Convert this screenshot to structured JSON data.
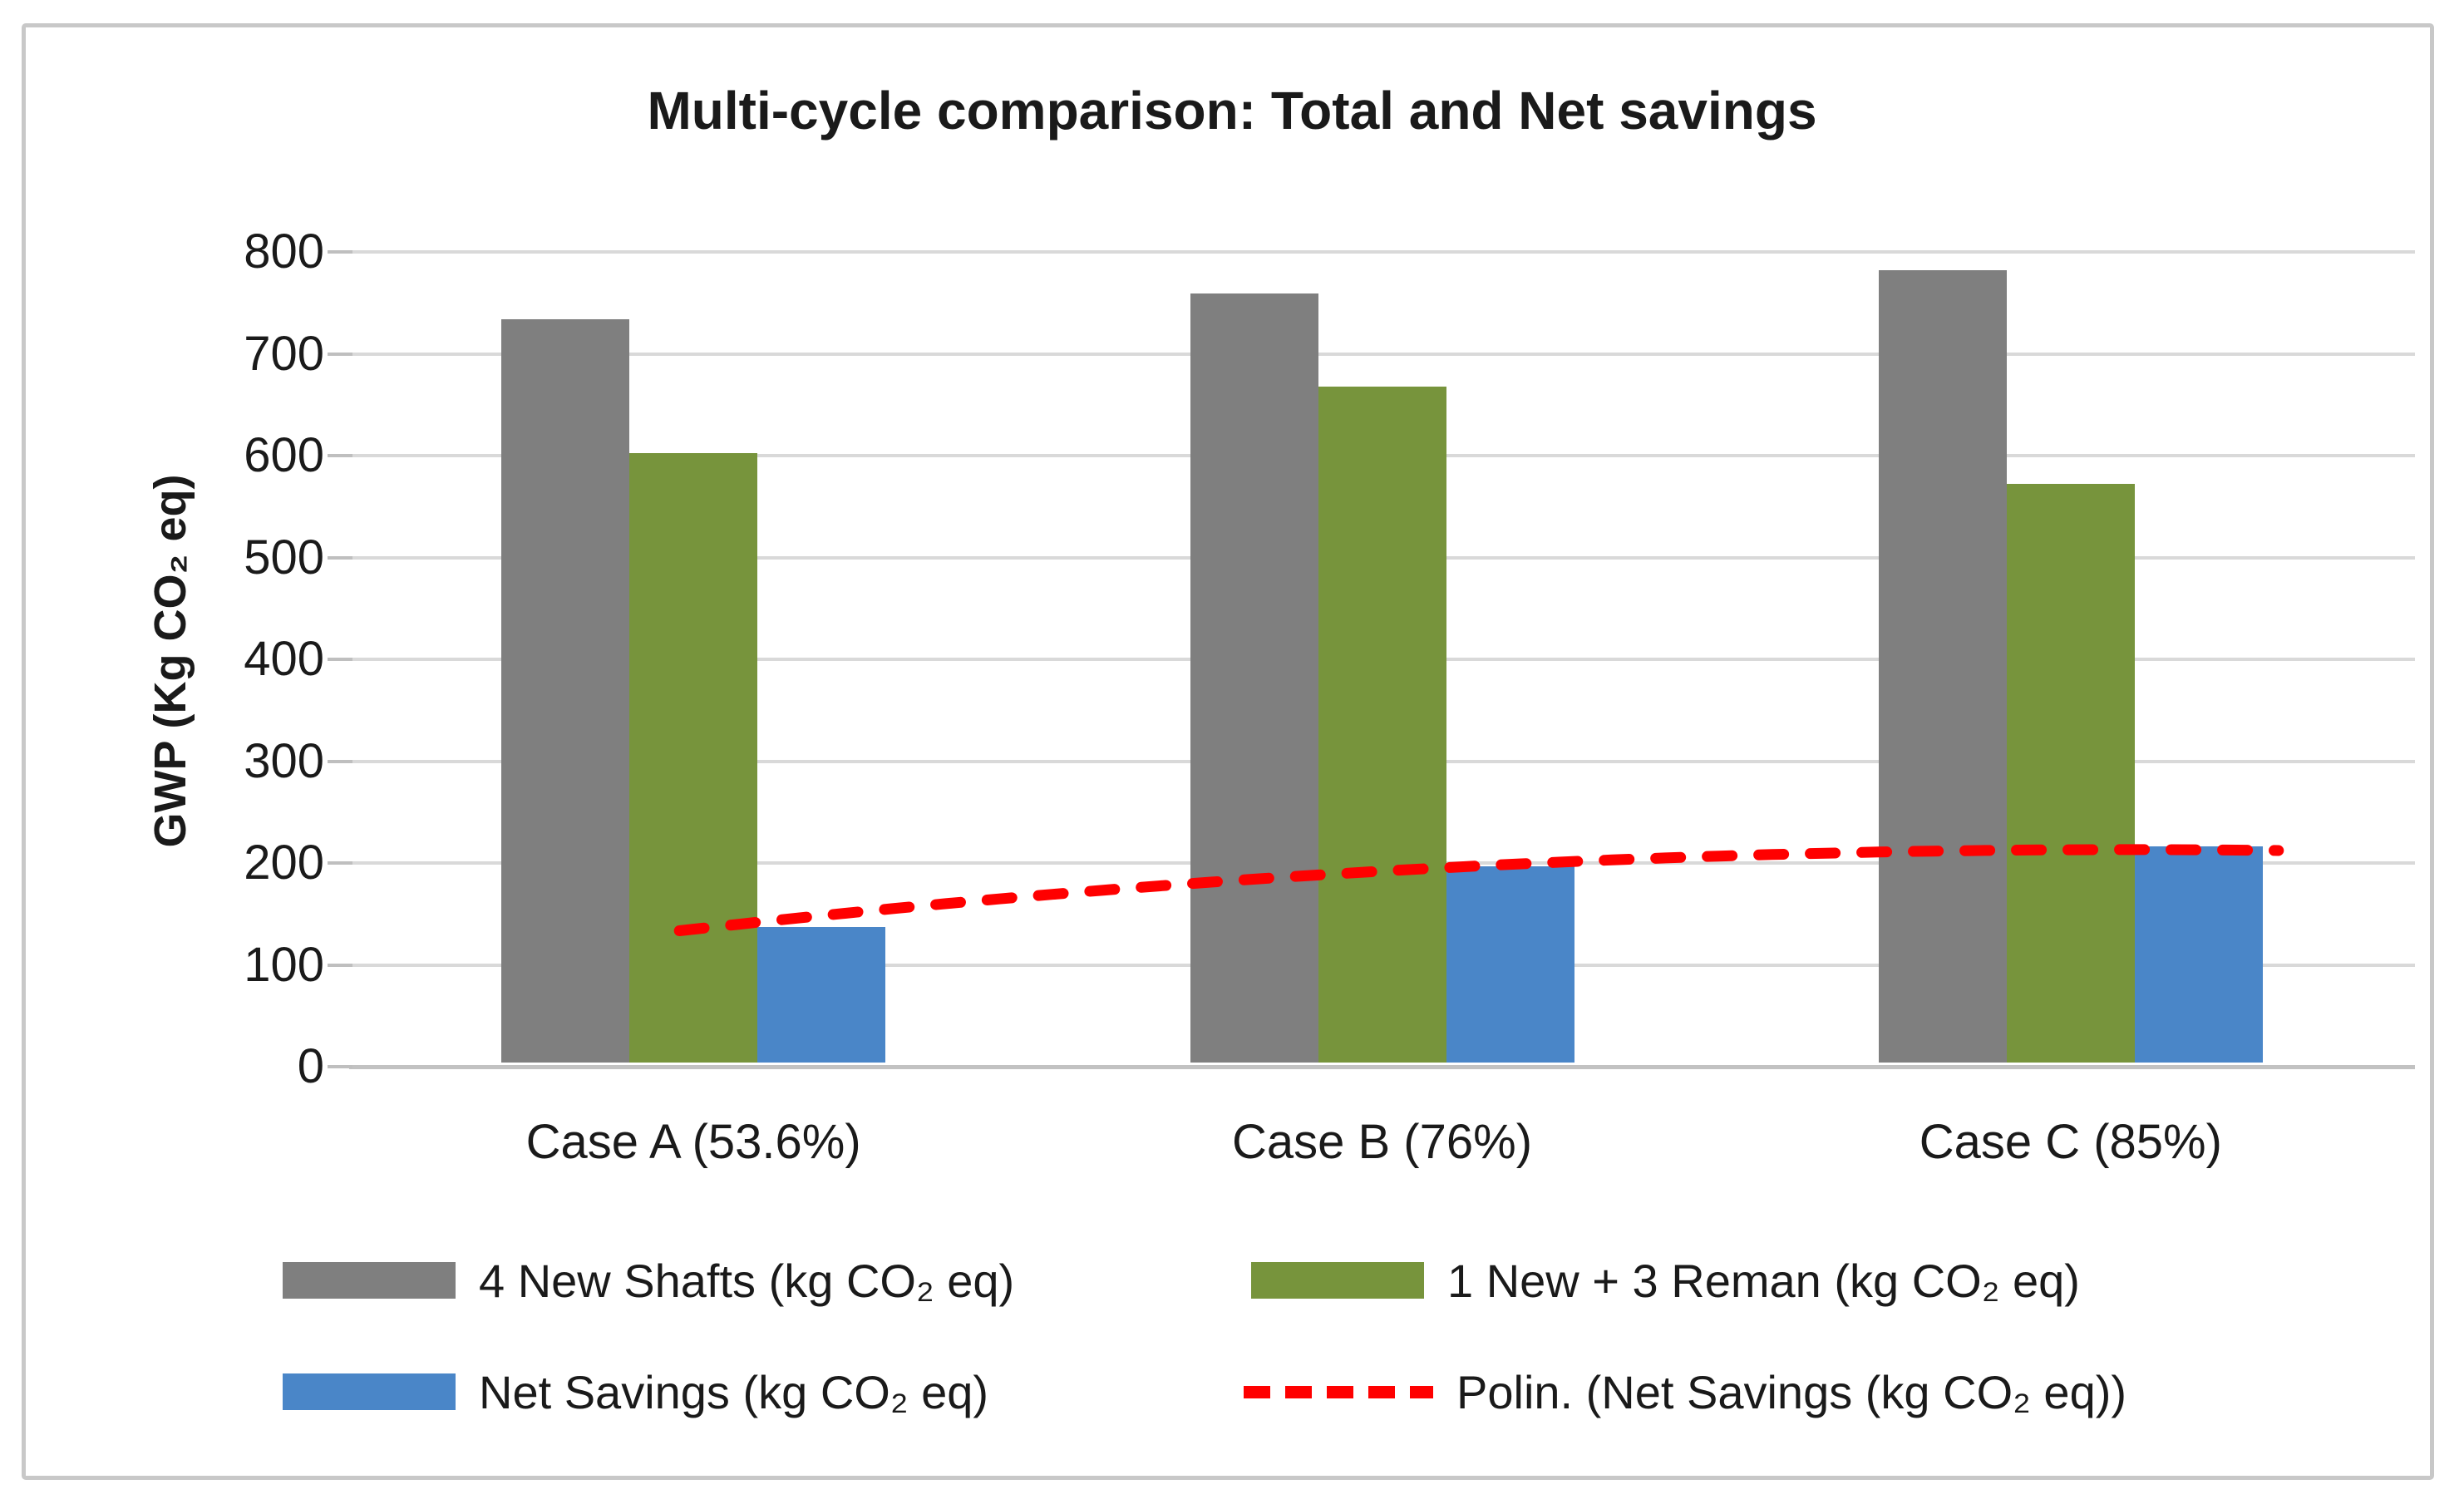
{
  "chart_data": {
    "type": "bar",
    "title": "Multi-cycle comparison: Total and Net savings",
    "categories": [
      "Case A (53.6%)",
      "Case B (76%)",
      "Case C (85%)"
    ],
    "series": [
      {
        "name": "4 New Shafts (kg CO₂ eq)",
        "type": "bar",
        "color": "#7F7F7F",
        "values": [
          730,
          755,
          778
        ]
      },
      {
        "name": "1 New + 3 Reman (kg CO₂ eq)",
        "type": "bar",
        "color": "#77943C",
        "values": [
          598,
          664,
          568
        ]
      },
      {
        "name": "Net Savings (kg CO₂ eq)",
        "type": "bar",
        "color": "#4A86C8",
        "values": [
          133,
          193,
          212
        ]
      },
      {
        "name": "Polin. (Net Savings (kg CO₂ eq))",
        "type": "trendline-polynomial",
        "color": "#FF0000",
        "line_style": "dashed",
        "values": [
          135,
          192,
          213
        ]
      }
    ],
    "xlabel": "",
    "ylabel": "GWP (Kg CO₂ eq)",
    "ylim": [
      0,
      800
    ],
    "ytick_step": 100,
    "yticks": [
      "800",
      "700",
      "600",
      "500",
      "400",
      "300",
      "200",
      "100",
      "0"
    ],
    "grid": "horizontal",
    "legend_position": "bottom",
    "colors": {
      "gridline": "#D9D9D9",
      "axis_tick": "#BFBFBF",
      "text": "#1A1A1A",
      "frame_border": "#C8C8C8",
      "background": "#FFFFFF"
    }
  }
}
